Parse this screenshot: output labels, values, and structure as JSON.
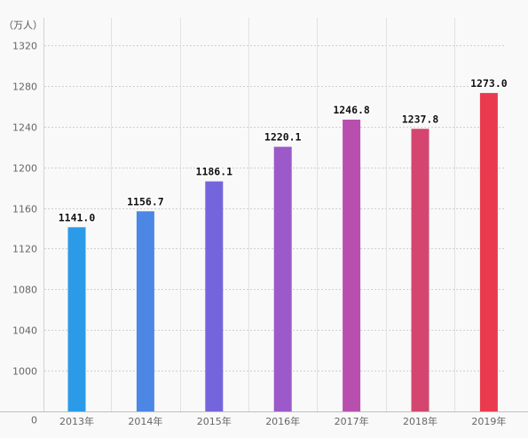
{
  "chart_data": {
    "type": "bar",
    "unit_label": "（万人）",
    "categories": [
      "2013年",
      "2014年",
      "2015年",
      "2016年",
      "2017年",
      "2018年",
      "2019年"
    ],
    "values": [
      1141.0,
      1156.7,
      1186.1,
      1220.1,
      1246.8,
      1237.8,
      1273.0
    ],
    "value_labels": [
      "1141.0",
      "1156.7",
      "1186.1",
      "1220.1",
      "1246.8",
      "1237.8",
      "1273.0"
    ],
    "y_ticks": [
      "0",
      "1000",
      "1040",
      "1080",
      "1120",
      "1160",
      "1200",
      "1240",
      "1280",
      "1320"
    ],
    "y_tick_values": [
      0,
      1000,
      1040,
      1080,
      1120,
      1160,
      1200,
      1240,
      1280,
      1320
    ],
    "axis_break": {
      "from": 0,
      "to": 1000
    },
    "ylim": [
      960,
      1320
    ],
    "bar_colors": [
      "#2b9be8",
      "#4c87e6",
      "#7565dd",
      "#9b59c9",
      "#b84fae",
      "#d4456f",
      "#ea3a4e"
    ],
    "grid": true,
    "grid_style": "dotted",
    "title": "",
    "xlabel": "",
    "ylabel": ""
  }
}
